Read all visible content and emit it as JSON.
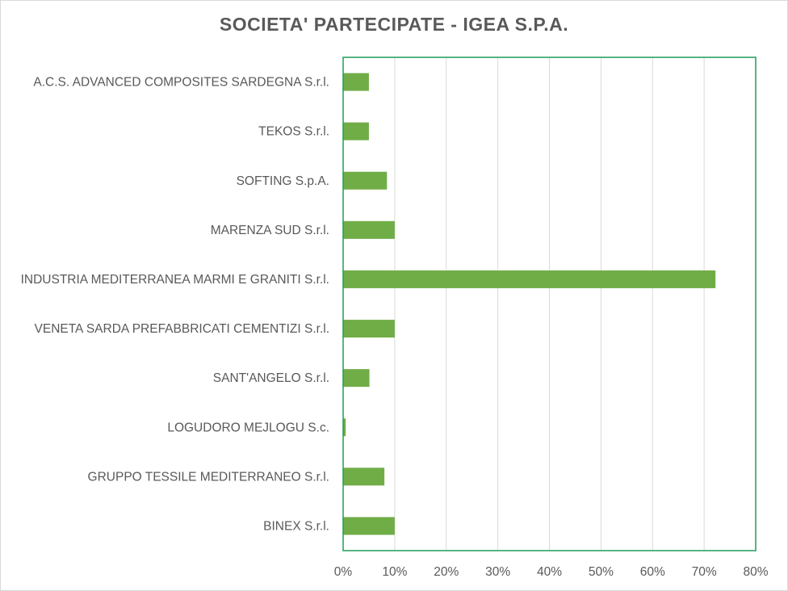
{
  "chart_data": {
    "type": "bar",
    "orientation": "horizontal",
    "title": "SOCIETA' PARTECIPATE - IGEA S.P.A.",
    "xlabel": "",
    "ylabel": "",
    "categories": [
      "A.C.S. ADVANCED COMPOSITES SARDEGNA S.r.l.",
      "TEKOS S.r.l.",
      "SOFTING S.p.A.",
      "MARENZA SUD S.r.l.",
      "INDUSTRIA MEDITERRANEA MARMI E GRANITI S.r.l.",
      "VENETA SARDA PREFABBRICATI CEMENTIZI S.r.l.",
      "SANT'ANGELO  S.r.l.",
      "LOGUDORO MEJLOGU S.c.",
      "GRUPPO TESSILE MEDITERRANEO S.r.l.",
      "BINEX S.r.l."
    ],
    "values": [
      5,
      5,
      8.5,
      10,
      72.2,
      10,
      5.1,
      0.5,
      8,
      10
    ],
    "xlim": [
      0,
      80
    ],
    "xticks": [
      0,
      10,
      20,
      30,
      40,
      50,
      60,
      70,
      80
    ],
    "xtick_labels": [
      "0%",
      "10%",
      "20%",
      "30%",
      "40%",
      "50%",
      "60%",
      "70%",
      "80%"
    ],
    "grid": "vertical",
    "legend": "none",
    "bar_color": "#70ad47",
    "frame_color": "#1e9e5a",
    "grid_color": "#d9d9d9"
  }
}
